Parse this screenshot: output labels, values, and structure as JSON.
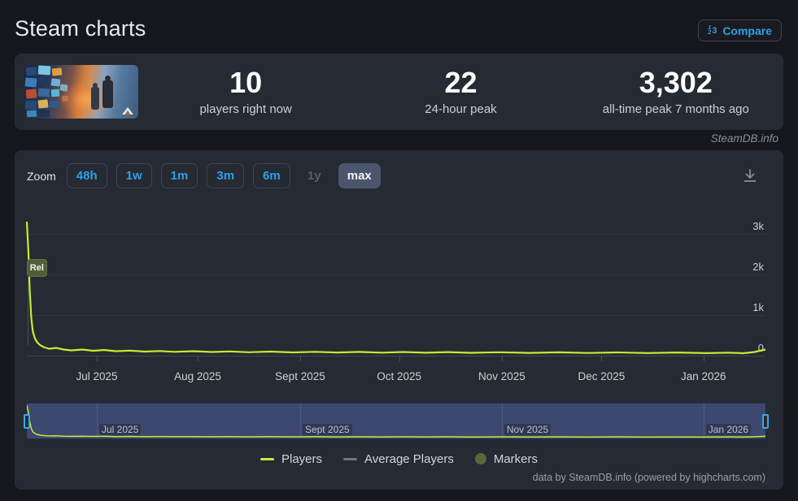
{
  "header": {
    "title": "Steam charts",
    "compare_label": "Compare",
    "compare_icon": "123"
  },
  "stats": {
    "current": {
      "value": "10",
      "label": "players right now"
    },
    "peak24": {
      "value": "22",
      "label": "24-hour peak"
    },
    "alltime": {
      "value": "3,302",
      "label": "all-time peak 7 months ago"
    }
  },
  "watermark": "SteamDB.info",
  "toolbar": {
    "zoom_label": "Zoom",
    "buttons": [
      {
        "label": "48h",
        "state": "enabled"
      },
      {
        "label": "1w",
        "state": "enabled"
      },
      {
        "label": "1m",
        "state": "enabled"
      },
      {
        "label": "3m",
        "state": "enabled"
      },
      {
        "label": "6m",
        "state": "enabled"
      },
      {
        "label": "1y",
        "state": "disabled"
      },
      {
        "label": "max",
        "state": "selected"
      }
    ]
  },
  "chart_data": {
    "type": "line",
    "title": "",
    "ylabel": "",
    "xlabel": "",
    "ylim": [
      0,
      3760
    ],
    "grid": true,
    "legend_position": "bottom-center",
    "colors": {
      "players": "#c0ee33",
      "average": "#70767e",
      "markers": "#57683a",
      "accent_blue": "#2ea0e8"
    },
    "yticks": [
      {
        "label": "3k",
        "value": 3000
      },
      {
        "label": "2k",
        "value": 2000
      },
      {
        "label": "1k",
        "value": 1000
      },
      {
        "label": "0",
        "value": 0
      }
    ],
    "xticks": [
      {
        "label": "Jul 2025",
        "f": 0.0947
      },
      {
        "label": "Aug 2025",
        "f": 0.2313
      },
      {
        "label": "Sept 2025",
        "f": 0.37
      },
      {
        "label": "Oct 2025",
        "f": 0.504
      },
      {
        "label": "Nov 2025",
        "f": 0.643
      },
      {
        "label": "Dec 2025",
        "f": 0.778
      },
      {
        "label": "Jan 2026",
        "f": 0.916
      }
    ],
    "series": [
      {
        "name": "Players",
        "color": "#c0ee33",
        "points": [
          [
            0.0,
            3302
          ],
          [
            0.002,
            2600
          ],
          [
            0.004,
            1600
          ],
          [
            0.006,
            950
          ],
          [
            0.008,
            600
          ],
          [
            0.011,
            420
          ],
          [
            0.014,
            330
          ],
          [
            0.018,
            260
          ],
          [
            0.023,
            210
          ],
          [
            0.03,
            170
          ],
          [
            0.04,
            190
          ],
          [
            0.05,
            150
          ],
          [
            0.06,
            130
          ],
          [
            0.075,
            150
          ],
          [
            0.09,
            120
          ],
          [
            0.105,
            140
          ],
          [
            0.12,
            110
          ],
          [
            0.14,
            125
          ],
          [
            0.16,
            100
          ],
          [
            0.18,
            115
          ],
          [
            0.2,
            95
          ],
          [
            0.225,
            110
          ],
          [
            0.25,
            90
          ],
          [
            0.275,
            105
          ],
          [
            0.3,
            85
          ],
          [
            0.33,
            100
          ],
          [
            0.36,
            80
          ],
          [
            0.39,
            95
          ],
          [
            0.42,
            78
          ],
          [
            0.45,
            92
          ],
          [
            0.48,
            75
          ],
          [
            0.51,
            90
          ],
          [
            0.54,
            72
          ],
          [
            0.57,
            88
          ],
          [
            0.6,
            70
          ],
          [
            0.64,
            85
          ],
          [
            0.68,
            68
          ],
          [
            0.72,
            82
          ],
          [
            0.76,
            66
          ],
          [
            0.8,
            80
          ],
          [
            0.84,
            64
          ],
          [
            0.88,
            78
          ],
          [
            0.92,
            62
          ],
          [
            0.95,
            75
          ],
          [
            0.97,
            60
          ],
          [
            0.985,
            90
          ],
          [
            1.0,
            150
          ]
        ]
      }
    ],
    "flags": [
      {
        "label": "Rel",
        "f": 0.002,
        "value_anchor": "release"
      }
    ],
    "navigator": {
      "selected_range": "max",
      "xticks": [
        {
          "label": "Jul 2025",
          "f": 0.0947
        },
        {
          "label": "Sept 2025",
          "f": 0.37
        },
        {
          "label": "Nov 2025",
          "f": 0.643
        },
        {
          "label": "Jan 2026",
          "f": 0.916
        }
      ]
    }
  },
  "legend": [
    {
      "label": "Players",
      "swatch": "line",
      "color": "#c0ee33"
    },
    {
      "label": "Average Players",
      "swatch": "line",
      "color": "#70767e"
    },
    {
      "label": "Markers",
      "swatch": "circle",
      "color": "#57683a"
    }
  ],
  "credit": "data by SteamDB.info (powered by highcharts.com)"
}
